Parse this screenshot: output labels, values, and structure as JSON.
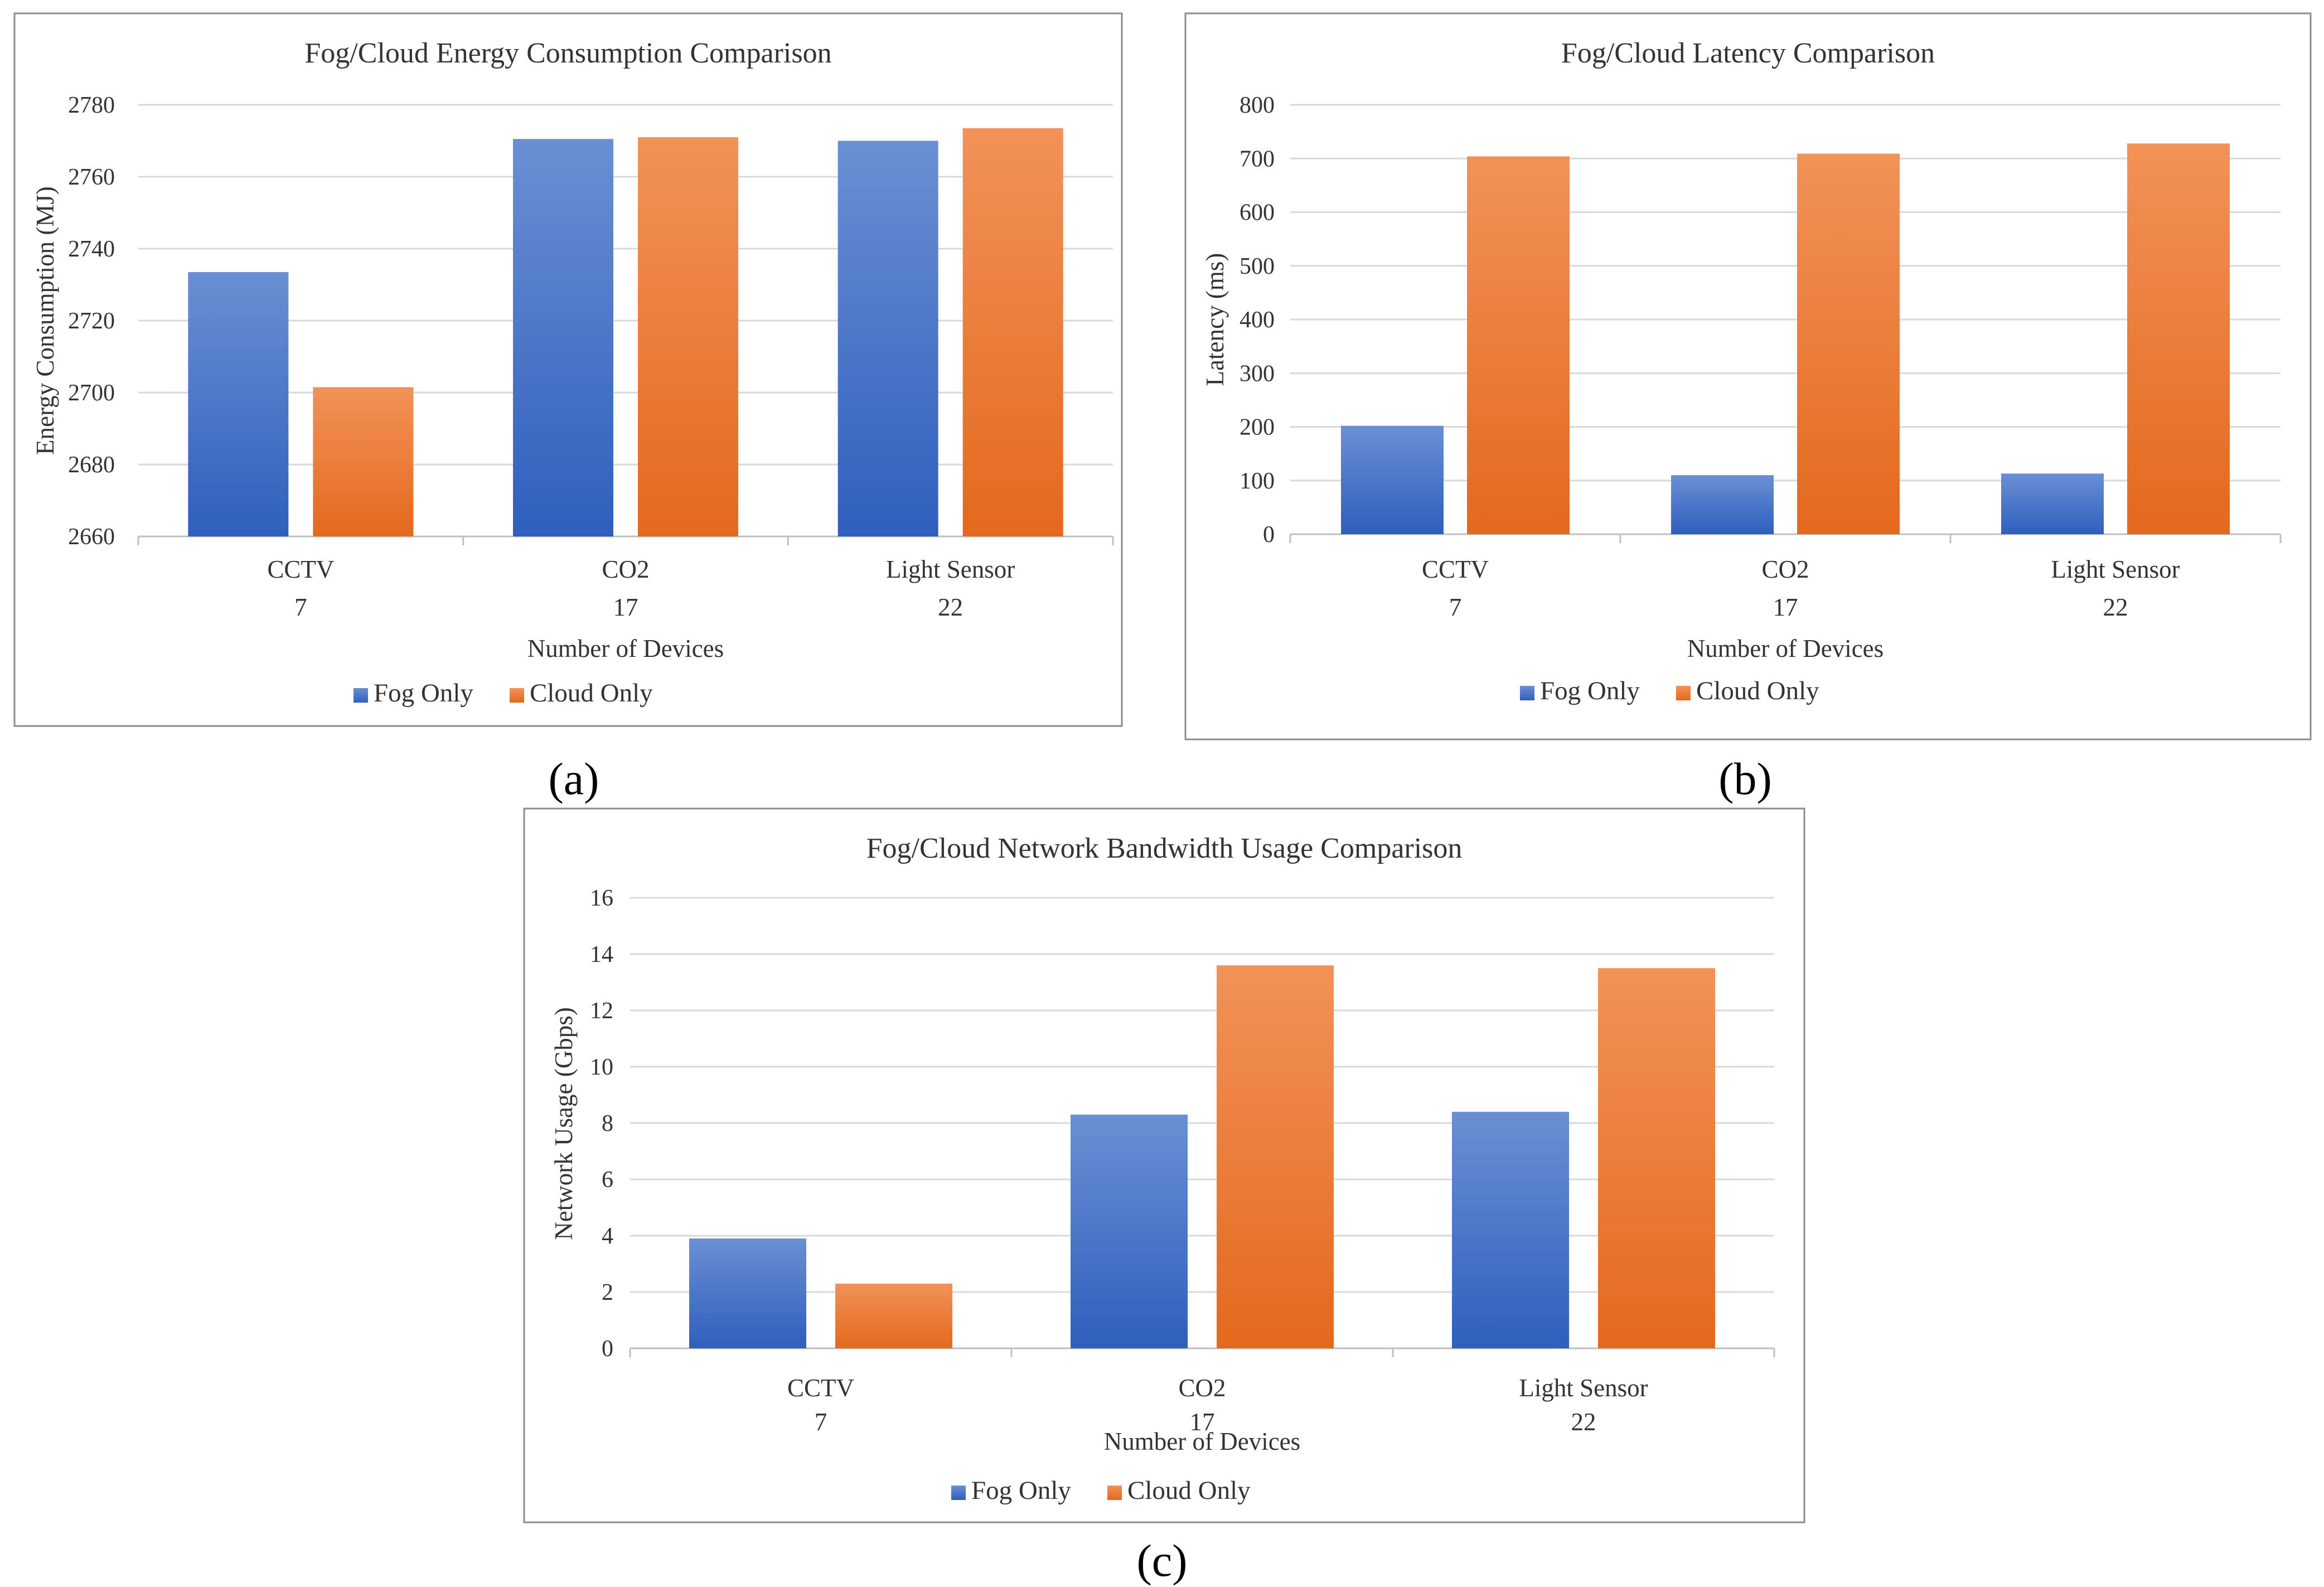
{
  "legend": {
    "fog_label": "Fog Only",
    "cloud_label": "Cloud Only"
  },
  "colors": {
    "fog_top": "#6a8fd3",
    "fog_bottom": "#2f5fbd",
    "cloud_top": "#f29258",
    "cloud_bottom": "#e3691d",
    "grid": "#d9d9d9",
    "axis": "#bfbfbf",
    "frame": "#8c8c8c"
  },
  "chart_data": [
    {
      "id": "a",
      "panel_label": "(a)",
      "type": "bar",
      "title": "Fog/Cloud Energy Consumption Comparison",
      "xlabel": "Number of Devices",
      "ylabel": "Energy Consumption (MJ)",
      "categories": [
        "CCTV",
        "CO2",
        "Light Sensor"
      ],
      "category_counts": [
        "7",
        "17",
        "22"
      ],
      "ylim": [
        2660,
        2780
      ],
      "yticks": [
        2660,
        2680,
        2700,
        2720,
        2740,
        2760,
        2780
      ],
      "legend_position": "bottom",
      "series": [
        {
          "name": "Fog Only",
          "values": [
            2733.5,
            2770.5,
            2770
          ]
        },
        {
          "name": "Cloud Only",
          "values": [
            2701.5,
            2771,
            2773.5
          ]
        }
      ]
    },
    {
      "id": "b",
      "panel_label": "(b)",
      "type": "bar",
      "title": "Fog/Cloud Latency Comparison",
      "xlabel": "Number of Devices",
      "ylabel": "Latency (ms)",
      "categories": [
        "CCTV",
        "CO2",
        "Light Sensor"
      ],
      "category_counts": [
        "7",
        "17",
        "22"
      ],
      "ylim": [
        0,
        800
      ],
      "yticks": [
        0,
        100,
        200,
        300,
        400,
        500,
        600,
        700,
        800
      ],
      "legend_position": "bottom",
      "series": [
        {
          "name": "Fog Only",
          "values": [
            202,
            110,
            113
          ]
        },
        {
          "name": "Cloud Only",
          "values": [
            704,
            709,
            728
          ]
        }
      ]
    },
    {
      "id": "c",
      "panel_label": "(c)",
      "type": "bar",
      "title": "Fog/Cloud Network Bandwidth Usage Comparison",
      "xlabel": "Number of Devices",
      "ylabel": "Network Usage (Gbps)",
      "categories": [
        "CCTV",
        "CO2",
        "Light Sensor"
      ],
      "category_counts": [
        "7",
        "17",
        "22"
      ],
      "ylim": [
        0,
        16
      ],
      "yticks": [
        0,
        2,
        4,
        6,
        8,
        10,
        12,
        14,
        16
      ],
      "legend_position": "bottom",
      "series": [
        {
          "name": "Fog Only",
          "values": [
            3.9,
            8.3,
            8.4
          ]
        },
        {
          "name": "Cloud Only",
          "values": [
            2.3,
            13.6,
            13.5
          ]
        }
      ]
    }
  ]
}
